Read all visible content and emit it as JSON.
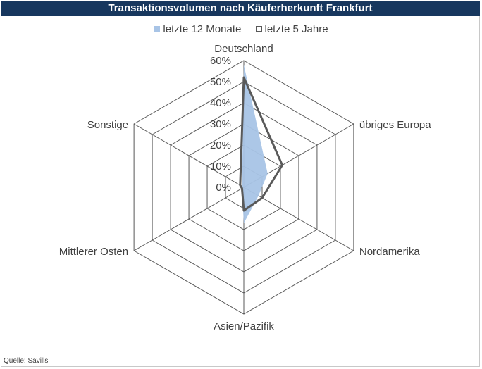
{
  "title": "Transaktionsvolumen nach Käuferherkunft Frankfurt",
  "source": "Quelle: Savills",
  "colors": {
    "title_bg": "#17375e",
    "series_fill": "#a8c4e6",
    "series_line": "#595959",
    "grid": "#595959"
  },
  "chart_data": {
    "type": "radar",
    "title": "Transaktionsvolumen nach Käuferherkunft Frankfurt",
    "categories": [
      "Deutschland",
      "übriges Europa",
      "Nordamerika",
      "Asien/Pazifik",
      "Mittlerer Osten",
      "Sonstige"
    ],
    "series": [
      {
        "name": "letzte 12 Monate",
        "style": "filled-area",
        "color": "#a8c4e6",
        "values": [
          58,
          13,
          8,
          17,
          1,
          1
        ]
      },
      {
        "name": "letzte 5 Jahre",
        "style": "line",
        "color": "#595959",
        "values": [
          52,
          21,
          10,
          11,
          1,
          2
        ]
      }
    ],
    "ticks": [
      "0%",
      "10%",
      "20%",
      "30%",
      "40%",
      "50%",
      "60%"
    ],
    "range": [
      0,
      60
    ],
    "grid": true,
    "legend_position": "top"
  }
}
